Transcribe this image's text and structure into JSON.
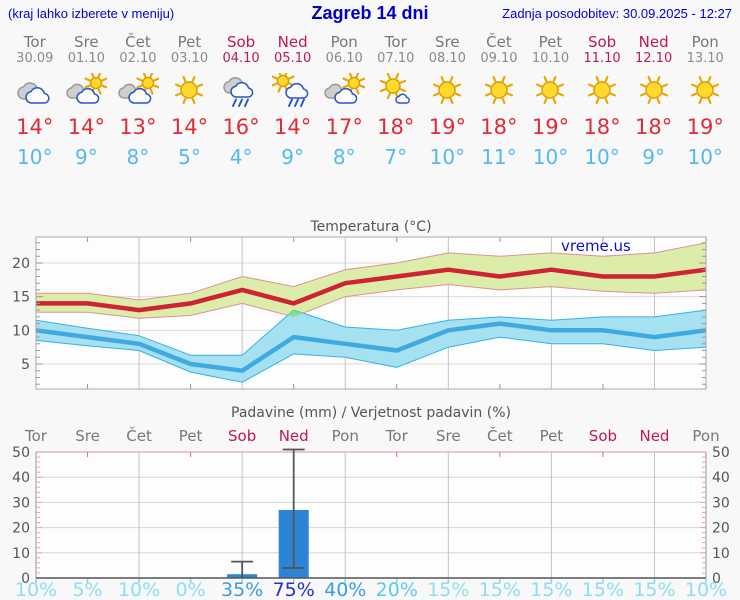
{
  "header": {
    "left_note": "(kraj lahko izberete v meniju)",
    "title": "Zagreb 14 dni",
    "updated": "Zadnja posodobitev: 30.09.2025 - 12:27"
  },
  "colors": {
    "header_blue": "#0000d8",
    "day_highlight": "#c21657",
    "day_gray": "#777777",
    "tmax_red": "#e12b38",
    "tmin_blue": "#55b8ee",
    "line_max": "#cf2233",
    "line_min": "#3fa9e2",
    "band_warm": "#dcedaa",
    "band_warm_edge": "#e09090",
    "band_cold": "#a6e1f2",
    "band_cold_edge": "#33b3e5",
    "overlap_green": "#8ed88e",
    "bar_blue": "#2d83d5",
    "watermark_blue": "#1111cc",
    "grid_pink": "#e8a2b8",
    "tick_cyan": "#7fd8f0"
  },
  "forecast": {
    "days": [
      {
        "name": "Tor",
        "date": "30.09",
        "highlight": false,
        "icon": "cloudy",
        "tmax": 14,
        "tmin": 10
      },
      {
        "name": "Sre",
        "date": "01.10",
        "highlight": false,
        "icon": "partly",
        "tmax": 14,
        "tmin": 9
      },
      {
        "name": "Čet",
        "date": "02.10",
        "highlight": false,
        "icon": "partly",
        "tmax": 13,
        "tmin": 8
      },
      {
        "name": "Pet",
        "date": "03.10",
        "highlight": false,
        "icon": "sunny",
        "tmax": 14,
        "tmin": 5
      },
      {
        "name": "Sob",
        "date": "04.10",
        "highlight": true,
        "icon": "rain",
        "tmax": 16,
        "tmin": 4
      },
      {
        "name": "Ned",
        "date": "05.10",
        "highlight": true,
        "icon": "sunrain",
        "tmax": 14,
        "tmin": 9
      },
      {
        "name": "Pon",
        "date": "06.10",
        "highlight": false,
        "icon": "partly",
        "tmax": 17,
        "tmin": 8
      },
      {
        "name": "Tor",
        "date": "07.10",
        "highlight": false,
        "icon": "mostlysunny",
        "tmax": 18,
        "tmin": 7
      },
      {
        "name": "Sre",
        "date": "08.10",
        "highlight": false,
        "icon": "sunny",
        "tmax": 19,
        "tmin": 10
      },
      {
        "name": "Čet",
        "date": "09.10",
        "highlight": false,
        "icon": "sunny",
        "tmax": 18,
        "tmin": 11
      },
      {
        "name": "Pet",
        "date": "10.10",
        "highlight": false,
        "icon": "sunny",
        "tmax": 19,
        "tmin": 10
      },
      {
        "name": "Sob",
        "date": "11.10",
        "highlight": true,
        "icon": "sunny",
        "tmax": 18,
        "tmin": 10
      },
      {
        "name": "Ned",
        "date": "12.10",
        "highlight": true,
        "icon": "sunny",
        "tmax": 18,
        "tmin": 9
      },
      {
        "name": "Pon",
        "date": "13.10",
        "highlight": false,
        "icon": "sunny",
        "tmax": 19,
        "tmin": 10
      }
    ]
  },
  "chart_data": [
    {
      "type": "line",
      "title": "Temperatura (°C)",
      "watermark": "vreme.us",
      "categories": [
        "Tor",
        "Sre",
        "Čet",
        "Pet",
        "Sob",
        "Ned",
        "Pon",
        "Tor",
        "Sre",
        "Čet",
        "Pet",
        "Sob",
        "Ned",
        "Pon"
      ],
      "ylim": [
        1,
        24
      ],
      "yticks": [
        5,
        10,
        15,
        20
      ],
      "grid": "vertical-every-2-days",
      "legend": "none",
      "series": [
        {
          "name": "max-temperature",
          "values": [
            14,
            14,
            13,
            14,
            16,
            14,
            17,
            18,
            19,
            18,
            19,
            18,
            18,
            19
          ],
          "band_hi": [
            15.5,
            15.5,
            14.5,
            15.5,
            18,
            16.5,
            19,
            20,
            21.5,
            21,
            21.5,
            21,
            21.5,
            23
          ],
          "band_lo": [
            12.7,
            12.7,
            11.8,
            12.2,
            14,
            12,
            15,
            16,
            16.8,
            16,
            16.5,
            15.8,
            15.5,
            16
          ]
        },
        {
          "name": "min-temperature",
          "values": [
            10,
            9,
            8,
            5,
            4,
            9,
            8,
            7,
            10,
            11,
            10,
            10,
            9,
            10
          ],
          "band_hi": [
            11.5,
            10.3,
            9.2,
            6.3,
            6.3,
            13,
            10.5,
            10,
            11.5,
            12,
            11.5,
            12,
            12,
            13
          ],
          "band_lo": [
            8.5,
            7.7,
            7,
            3.8,
            2.3,
            6.5,
            6,
            4.5,
            7.5,
            9,
            8,
            8,
            7,
            7.5
          ]
        }
      ]
    },
    {
      "type": "bar",
      "title": "Padavine (mm) / Verjetnost padavin (%)",
      "categories": [
        "Tor",
        "Sre",
        "Čet",
        "Pet",
        "Sob",
        "Ned",
        "Pon",
        "Tor",
        "Sre",
        "Čet",
        "Pet",
        "Sob",
        "Ned",
        "Pon"
      ],
      "highlight": [
        false,
        false,
        false,
        false,
        true,
        true,
        false,
        false,
        false,
        false,
        false,
        true,
        true,
        false
      ],
      "ylim": [
        0,
        52
      ],
      "yticks": [
        0,
        10,
        20,
        30,
        40,
        50
      ],
      "values": [
        0,
        0,
        0,
        0,
        1.5,
        27,
        0,
        0,
        0,
        0,
        0,
        0,
        0,
        0
      ],
      "whisker_hi": [
        0,
        0,
        0,
        0,
        6.5,
        51,
        0,
        0,
        0,
        0,
        0,
        0,
        0,
        0
      ],
      "whisker_lo": [
        0,
        0,
        0,
        0,
        0,
        4,
        0,
        0,
        0,
        0,
        0,
        0,
        0,
        0
      ],
      "probabilities": [
        10,
        5,
        10,
        0,
        35,
        75,
        40,
        20,
        15,
        15,
        15,
        15,
        15,
        10
      ]
    }
  ]
}
